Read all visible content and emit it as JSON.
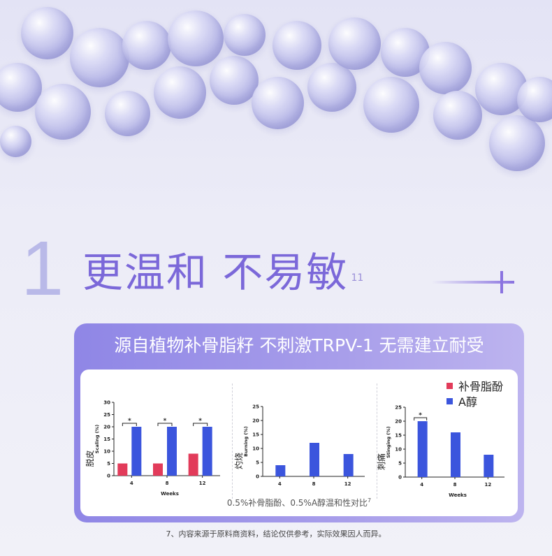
{
  "headline": {
    "number": "1",
    "text": "更温和 不易敏",
    "superscript": "11"
  },
  "panel": {
    "title": "源自植物补骨脂籽  不刺激TRPV-1 无需建立耐受",
    "caption": "0.5%补骨脂酚、0.5%A醇温和性对比",
    "caption_superscript": "7"
  },
  "legend": [
    {
      "label": "补骨脂酚",
      "color": "#e23b5a"
    },
    {
      "label": "A醇",
      "color": "#3b55dd"
    }
  ],
  "footnote": "7、内容来源于原料商资料，结论仅供参考，实际效果因人而异。",
  "chart_data": [
    {
      "type": "bar",
      "categories": [
        "4",
        "8",
        "12"
      ],
      "series": [
        {
          "name": "补骨脂酚",
          "values": [
            5,
            5,
            9
          ]
        },
        {
          "name": "A醇",
          "values": [
            20,
            20,
            20
          ]
        }
      ],
      "xlabel": "Weeks",
      "ylabel": "Scaling (%)",
      "ylabel_cn": "脱皮",
      "ylim": [
        0,
        30
      ],
      "yticks": [
        0,
        5,
        10,
        15,
        20,
        25,
        30
      ],
      "significance": [
        "*",
        "*",
        "*"
      ]
    },
    {
      "type": "bar",
      "categories": [
        "4",
        "8",
        "12"
      ],
      "series": [
        {
          "name": "A醇",
          "values": [
            4,
            12,
            8
          ]
        }
      ],
      "xlabel": "",
      "ylabel": "Burning (%)",
      "ylabel_cn": "灼烧",
      "ylim": [
        0,
        25
      ],
      "yticks": [
        0,
        5,
        10,
        15,
        20,
        25
      ],
      "significance": []
    },
    {
      "type": "bar",
      "categories": [
        "4",
        "8",
        "12"
      ],
      "series": [
        {
          "name": "A醇",
          "values": [
            20,
            16,
            8
          ]
        }
      ],
      "xlabel": "Weeks",
      "ylabel": "Stinging (%)",
      "ylabel_cn": "刺痛",
      "ylim": [
        0,
        25
      ],
      "yticks": [
        0,
        5,
        10,
        15,
        20,
        25
      ],
      "significance": [
        "*"
      ]
    }
  ]
}
